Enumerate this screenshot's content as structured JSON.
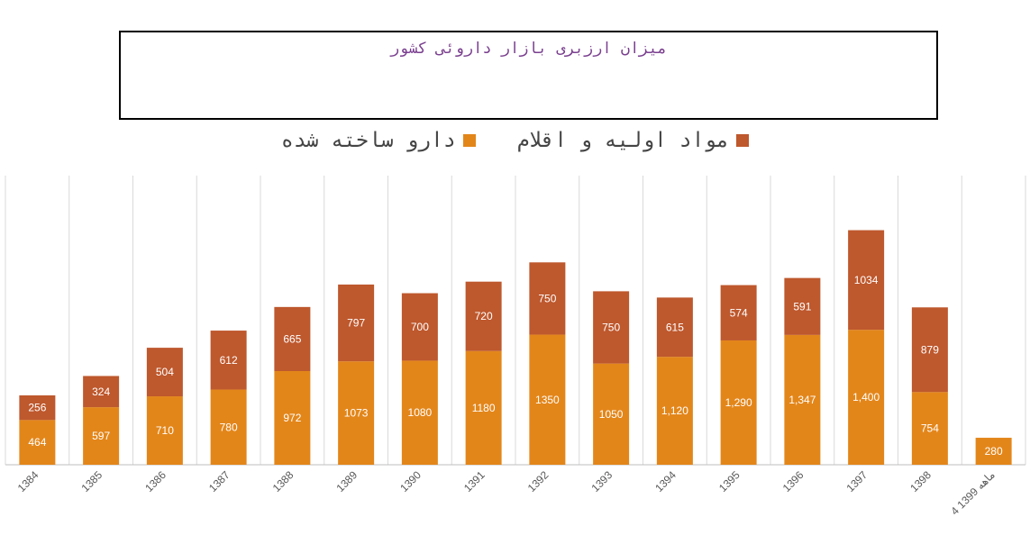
{
  "chart_data": {
    "type": "stacked-bar",
    "title": "میزان ارزبری بازار داروئی کشور",
    "categories": [
      "1384",
      "1385",
      "1386",
      "1387",
      "1388",
      "1389",
      "1390",
      "1391",
      "1392",
      "1393",
      "1394",
      "1395",
      "1396",
      "1397",
      "1398",
      "4 ماهه 1399"
    ],
    "series": [
      {
        "name": "دارو ساخته شده",
        "color": "#E3861A",
        "values": [
          464,
          597,
          710,
          780,
          972,
          1073,
          1080,
          1180,
          1350,
          1050,
          1120,
          1290,
          1347,
          1400,
          754,
          280
        ],
        "labels": [
          "464",
          "597",
          "710",
          "780",
          "972",
          "1073",
          "1080",
          "1180",
          "1350",
          "1050",
          "1,120",
          "1,290",
          "1,347",
          "1,400",
          "754",
          "280"
        ]
      },
      {
        "name": "مواد اولیه و اقلام",
        "color": "#BE582D",
        "values": [
          256,
          324,
          504,
          612,
          665,
          797,
          700,
          720,
          750,
          750,
          615,
          574,
          591,
          1034,
          879,
          null
        ],
        "labels": [
          "256",
          "324",
          "504",
          "612",
          "665",
          "797",
          "700",
          "720",
          "750",
          "750",
          "615",
          "574",
          "591",
          "1034",
          "879",
          ""
        ]
      }
    ],
    "ylim": [
      0,
      3000
    ],
    "grid": "vertical",
    "legend": "top"
  }
}
